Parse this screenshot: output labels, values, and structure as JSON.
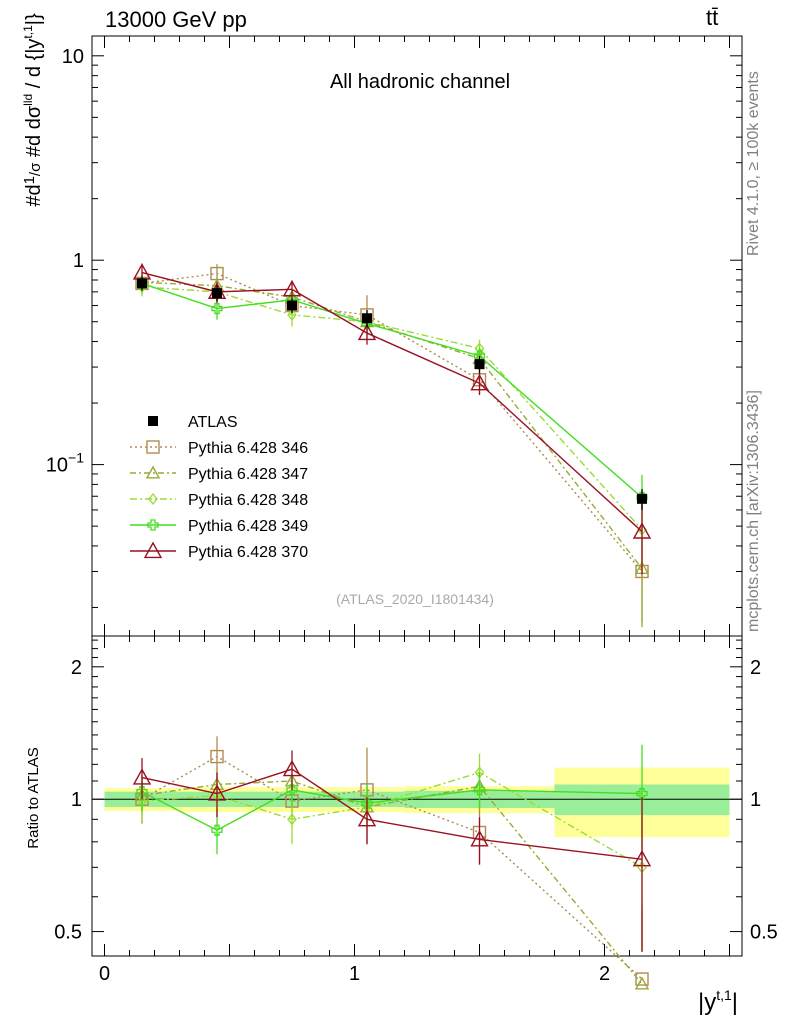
{
  "header": {
    "left": "13000 GeV pp",
    "right": "tt̄"
  },
  "side_labels": {
    "rivet": "Rivet 4.1.0, ≥ 100k events",
    "mcplots": "mcplots.cern.ch [arXiv:1306.3436]"
  },
  "chart_data": {
    "type": "line",
    "title": "All hadronic channel",
    "analysis_tag": "(ATLAS_2020_I1801434)",
    "xlabel": "|y^{t,1}|",
    "xlabel_main": "|y",
    "xlabel_sup": "t,1",
    "xlabel_close": "|",
    "ylabel": "#d\\frac{1}{\\sigma}#d\\frac{d\\sigma^{lld}}{d \\{|y^{t,1}|\\}}",
    "ratio_ylabel": "Ratio to ATLAS",
    "x_ticks": [
      "0",
      "1",
      "2"
    ],
    "y_ticks_main": [
      {
        "value": 10,
        "label": "10"
      },
      {
        "value": 1,
        "label": "1"
      },
      {
        "value": 0.1,
        "label_base": "10",
        "label_exp": "−1"
      }
    ],
    "y_ticks_ratio": [
      "2",
      "1",
      "0.5"
    ],
    "xlim": [
      -0.05,
      2.55
    ],
    "ylim_main": [
      0.0145,
      12.5
    ],
    "ylim_ratio": [
      0.44,
      2.35
    ],
    "bins": [
      {
        "lo": 0.0,
        "hi": 0.3
      },
      {
        "lo": 0.3,
        "hi": 0.6
      },
      {
        "lo": 0.6,
        "hi": 0.9
      },
      {
        "lo": 0.9,
        "hi": 1.2
      },
      {
        "lo": 1.2,
        "hi": 1.8
      },
      {
        "lo": 1.8,
        "hi": 2.5
      }
    ],
    "x": [
      0.15,
      0.45,
      0.75,
      1.05,
      1.5,
      2.15
    ],
    "data": {
      "name": "ATLAS",
      "values": [
        0.77,
        0.69,
        0.6,
        0.52,
        0.31,
        0.068
      ],
      "errors": [
        0.06,
        0.06,
        0.05,
        0.05,
        0.03,
        0.008
      ],
      "band_inner": [
        0.04,
        0.04,
        0.04,
        0.04,
        0.045,
        0.08
      ],
      "band_outer": [
        0.06,
        0.065,
        0.065,
        0.065,
        0.07,
        0.18
      ]
    },
    "series": [
      {
        "name": "Pythia 6.428 346",
        "color": "#b08b50",
        "dash": "2,3",
        "marker": "square",
        "values": [
          0.77,
          0.86,
          0.6,
          0.54,
          0.26,
          0.03
        ],
        "ratio": [
          1.0,
          1.25,
          0.99,
          1.05,
          0.84,
          0.39
        ],
        "ratio_err": [
          0.12,
          0.14,
          0.09,
          0.26,
          0.13,
          0.17
        ]
      },
      {
        "name": "Pythia 6.428 347",
        "color": "#99aa33",
        "dash": "6,3,2,3",
        "marker": "triangle",
        "values": [
          0.78,
          0.75,
          0.66,
          0.5,
          0.33,
          0.031
        ],
        "ratio": [
          1.02,
          1.08,
          1.1,
          0.96,
          1.07,
          0.38
        ],
        "ratio_err": [
          0.1,
          0.1,
          0.09,
          0.1,
          0.12,
          0.2
        ]
      },
      {
        "name": "Pythia 6.428 348",
        "color": "#99dd33",
        "dash": "7,3,2,3",
        "marker": "diamond",
        "values": [
          0.74,
          0.7,
          0.54,
          0.5,
          0.37,
          0.048
        ],
        "ratio": [
          0.99,
          1.02,
          0.9,
          0.96,
          1.15,
          0.7
        ],
        "ratio_err": [
          0.1,
          0.11,
          0.11,
          0.1,
          0.12,
          0.26
        ]
      },
      {
        "name": "Pythia 6.428 349",
        "color": "#44dd22",
        "dash": "",
        "marker": "cross",
        "values": [
          0.77,
          0.58,
          0.64,
          0.49,
          0.34,
          0.069
        ],
        "ratio": [
          1.04,
          0.85,
          1.05,
          0.98,
          1.05,
          1.03
        ],
        "ratio_err": [
          0.1,
          0.1,
          0.09,
          0.1,
          0.1,
          0.3
        ]
      },
      {
        "name": "Pythia 6.428 370",
        "color": "#991122",
        "dash": "",
        "marker": "triangle-open",
        "values": [
          0.87,
          0.7,
          0.72,
          0.44,
          0.25,
          0.047
        ],
        "ratio": [
          1.12,
          1.03,
          1.17,
          0.9,
          0.81,
          0.73
        ],
        "ratio_err": [
          0.12,
          0.12,
          0.12,
          0.11,
          0.1,
          0.28
        ]
      }
    ]
  }
}
